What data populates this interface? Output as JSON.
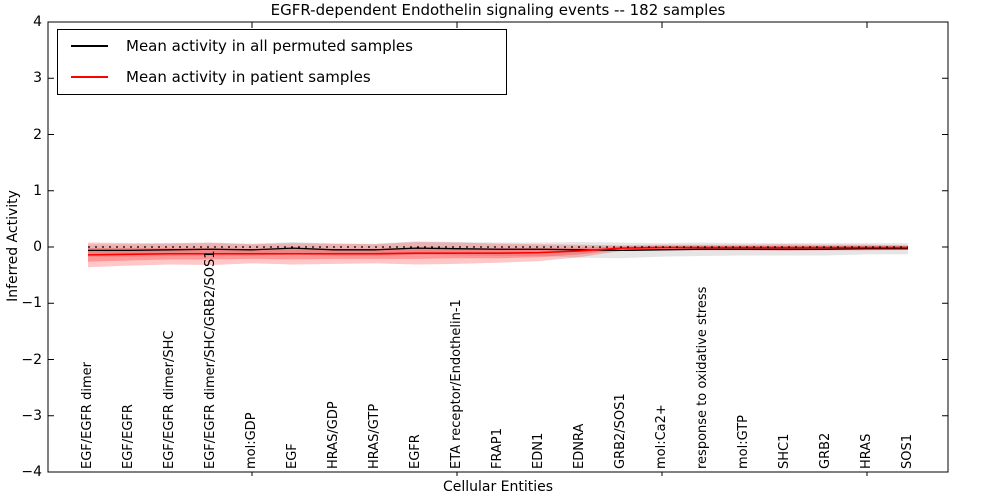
{
  "chart_data": {
    "type": "line",
    "title": "EGFR-dependent Endothelin signaling events -- 182 samples",
    "xlabel": "Cellular Entities",
    "ylabel": "Inferred Activity",
    "ylim": [
      -4,
      4
    ],
    "grid": false,
    "ytick_values": [
      4,
      3,
      2,
      1,
      0,
      -1,
      -2,
      -3,
      -4
    ],
    "ytick_labels": [
      "4",
      "3",
      "2",
      "1",
      "0",
      "−1",
      "−2",
      "−3",
      "−4"
    ],
    "xtick_marker_indices": [
      4,
      9,
      14,
      19
    ],
    "categories": [
      "EGF/EGFR dimer",
      "EGF/EGFR",
      "EGF/EGFR dimer/SHC",
      "EGF/EGFR dimer/SHC/GRB2/SOS1",
      "mol:GDP",
      "EGF",
      "HRAS/GDP",
      "HRAS/GTP",
      "EGFR",
      "ETA receptor/Endothelin-1",
      "FRAP1",
      "EDN1",
      "EDNRA",
      "GRB2/SOS1",
      "mol:Ca2+",
      "response to oxidative stress",
      "mol:GTP",
      "SHC1",
      "GRB2",
      "HRAS",
      "SOS1"
    ],
    "zero_line": {
      "value": 0,
      "style": "dotted",
      "color": "#000000"
    },
    "series": [
      {
        "name": "Mean activity in all permuted samples",
        "color": "#000000",
        "values": [
          -0.06,
          -0.06,
          -0.05,
          -0.04,
          -0.05,
          -0.02,
          -0.05,
          -0.05,
          -0.02,
          -0.03,
          -0.04,
          -0.04,
          -0.05,
          -0.06,
          -0.05,
          -0.04,
          -0.04,
          -0.04,
          -0.04,
          -0.03,
          -0.03
        ]
      },
      {
        "name": "Mean activity in patient samples",
        "color": "#ff0000",
        "values": [
          -0.14,
          -0.13,
          -0.12,
          -0.12,
          -0.12,
          -0.12,
          -0.12,
          -0.12,
          -0.11,
          -0.11,
          -0.11,
          -0.1,
          -0.07,
          -0.02,
          -0.01,
          -0.01,
          -0.01,
          -0.01,
          -0.01,
          -0.01,
          -0.01
        ]
      }
    ],
    "bands": [
      {
        "name": "permuted-samples-spread",
        "color": "rgba(0,0,0,0.10)",
        "upper": [
          0.05,
          0.05,
          0.06,
          0.07,
          0.06,
          0.09,
          0.06,
          0.06,
          0.1,
          0.09,
          0.08,
          0.08,
          0.09,
          0.08,
          0.07,
          0.08,
          0.07,
          0.07,
          0.07,
          0.07,
          0.07
        ],
        "lower": [
          -0.17,
          -0.17,
          -0.16,
          -0.15,
          -0.16,
          -0.13,
          -0.16,
          -0.16,
          -0.14,
          -0.15,
          -0.16,
          -0.16,
          -0.19,
          -0.2,
          -0.17,
          -0.16,
          -0.15,
          -0.15,
          -0.15,
          -0.13,
          -0.13
        ]
      },
      {
        "name": "patient-samples-spread-outer",
        "color": "rgba(255,0,0,0.22)",
        "upper": [
          0.08,
          0.07,
          0.07,
          0.08,
          0.05,
          0.07,
          0.06,
          0.05,
          0.09,
          0.08,
          0.06,
          0.05,
          0.04,
          0.03,
          0.04,
          0.04,
          0.04,
          0.05,
          0.04,
          0.04,
          0.03
        ],
        "lower": [
          -0.36,
          -0.33,
          -0.31,
          -0.32,
          -0.29,
          -0.31,
          -0.3,
          -0.29,
          -0.31,
          -0.3,
          -0.28,
          -0.25,
          -0.18,
          -0.07,
          -0.06,
          -0.06,
          -0.06,
          -0.07,
          -0.06,
          -0.06,
          -0.05
        ]
      },
      {
        "name": "patient-samples-spread-inner",
        "color": "rgba(255,0,0,0.25)",
        "upper": [
          -0.02,
          -0.02,
          -0.02,
          -0.02,
          -0.03,
          -0.02,
          -0.03,
          -0.03,
          -0.01,
          -0.02,
          -0.02,
          -0.02,
          -0.01,
          0.01,
          0.02,
          0.02,
          0.02,
          0.02,
          0.02,
          0.02,
          0.02
        ],
        "lower": [
          -0.26,
          -0.24,
          -0.22,
          -0.22,
          -0.21,
          -0.22,
          -0.21,
          -0.21,
          -0.21,
          -0.2,
          -0.2,
          -0.18,
          -0.13,
          -0.05,
          -0.04,
          -0.04,
          -0.04,
          -0.04,
          -0.04,
          -0.04,
          -0.04
        ]
      }
    ],
    "legend": {
      "position": "upper left",
      "entries": [
        {
          "label": "Mean activity in all permuted samples",
          "color": "#000000"
        },
        {
          "label": "Mean activity in patient samples",
          "color": "#ff0000"
        }
      ]
    }
  }
}
